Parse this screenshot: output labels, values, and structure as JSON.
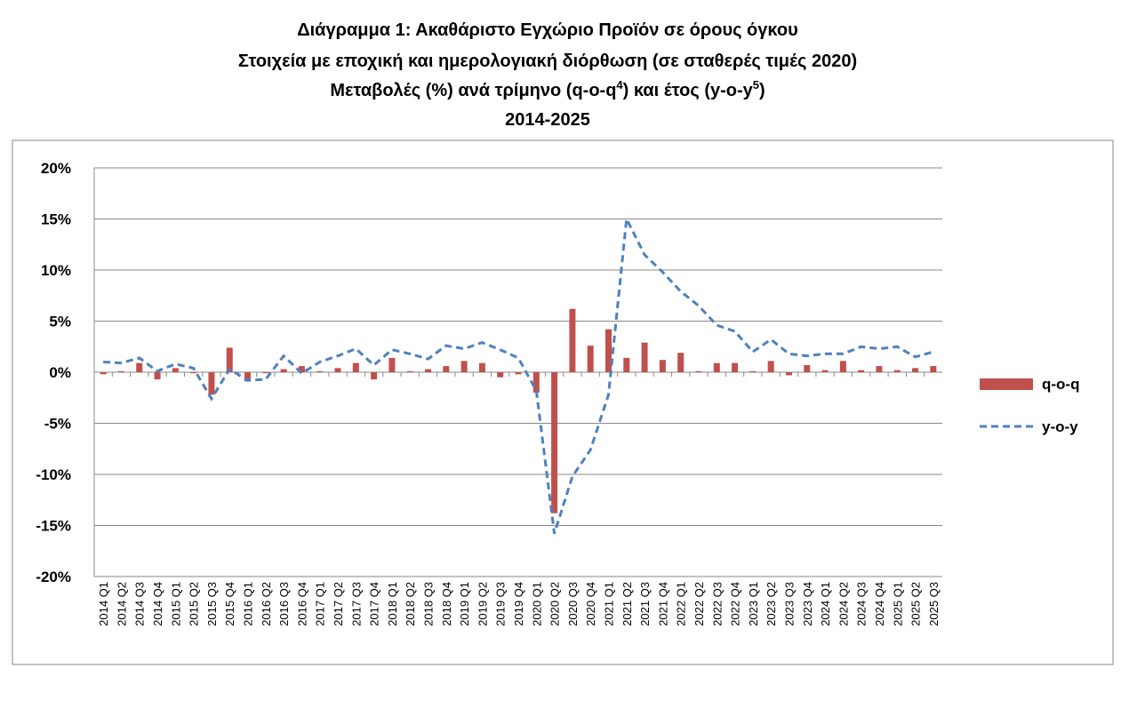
{
  "chart_data": {
    "type": "bar_line",
    "title": "Διάγραμμα 1: Ακαθάριστο Εγχώριο Προϊόν σε όρους όγκου",
    "subtitle": "Στοιχεία με εποχική και ημερολογιακή διόρθωση (σε σταθερές τιμές 2020)",
    "subtitle2_parts": [
      "Μεταβολές (%) ανά τρίμηνο (q-o-q",
      "4",
      ") και έτος (y-o-y",
      "5",
      ")"
    ],
    "period": "2014-2025",
    "categories": [
      "2014 Q1",
      "2014 Q2",
      "2014 Q3",
      "2014 Q4",
      "2015 Q1",
      "2015 Q2",
      "2015 Q3",
      "2015 Q4",
      "2016 Q1",
      "2016 Q2",
      "2016 Q3",
      "2016 Q4",
      "2017 Q1",
      "2017 Q2",
      "2017 Q3",
      "2017 Q4",
      "2018 Q1",
      "2018 Q2",
      "2018 Q3",
      "2018 Q4",
      "2019 Q1",
      "2019 Q2",
      "2019 Q3",
      "2019 Q4",
      "2020 Q1",
      "2020 Q2",
      "2020 Q3",
      "2020 Q4",
      "2021 Q1",
      "2021 Q2",
      "2021 Q3",
      "2021 Q4",
      "2022 Q1",
      "2022 Q2",
      "2022 Q3",
      "2022 Q4",
      "2023 Q1",
      "2023 Q2",
      "2023 Q3",
      "2023 Q4",
      "2024 Q1",
      "2024 Q2",
      "2024 Q3",
      "2024 Q4",
      "2025 Q1",
      "2025 Q2",
      "2025 Q3"
    ],
    "series": [
      {
        "name": "q-o-q",
        "kind": "bar",
        "color": "#c0504d",
        "values": [
          -0.2,
          0.1,
          0.9,
          -0.7,
          0.4,
          -0.1,
          -2.2,
          2.4,
          -0.9,
          -0.1,
          0.3,
          0.6,
          0.1,
          0.4,
          0.9,
          -0.7,
          1.4,
          0.1,
          0.3,
          0.6,
          1.1,
          0.9,
          -0.5,
          -0.2,
          -2.0,
          -13.8,
          6.2,
          2.6,
          4.2,
          1.4,
          2.9,
          1.2,
          1.9,
          0.1,
          0.9,
          0.9,
          0.1,
          1.1,
          -0.3,
          0.7,
          0.2,
          1.1,
          0.2,
          0.6,
          0.2,
          0.4,
          0.6
        ]
      },
      {
        "name": "y-o-y",
        "kind": "line",
        "color": "#4f81bd",
        "values": [
          1.0,
          0.9,
          1.4,
          0.1,
          0.8,
          0.4,
          -2.6,
          0.3,
          -0.8,
          -0.7,
          1.6,
          -0.1,
          1.0,
          1.6,
          2.3,
          0.7,
          2.2,
          1.8,
          1.3,
          2.6,
          2.3,
          2.9,
          2.2,
          1.4,
          -1.8,
          -15.8,
          -10.2,
          -7.6,
          -2.2,
          15.0,
          11.5,
          9.8,
          7.9,
          6.5,
          4.6,
          4.0,
          2.0,
          3.2,
          1.8,
          1.6,
          1.8,
          1.8,
          2.5,
          2.3,
          2.5,
          1.5,
          2.0
        ]
      }
    ],
    "ylim": [
      -20,
      20
    ],
    "yticks": [
      {
        "value": -20,
        "label": "-20%"
      },
      {
        "value": -15,
        "label": "-15%"
      },
      {
        "value": -10,
        "label": "-10%"
      },
      {
        "value": -5,
        "label": "-5%"
      },
      {
        "value": 0,
        "label": "0%"
      },
      {
        "value": 5,
        "label": "5%"
      },
      {
        "value": 10,
        "label": "10%"
      },
      {
        "value": 15,
        "label": "15%"
      },
      {
        "value": 20,
        "label": "20%"
      }
    ],
    "grid": true,
    "legend": "right"
  }
}
